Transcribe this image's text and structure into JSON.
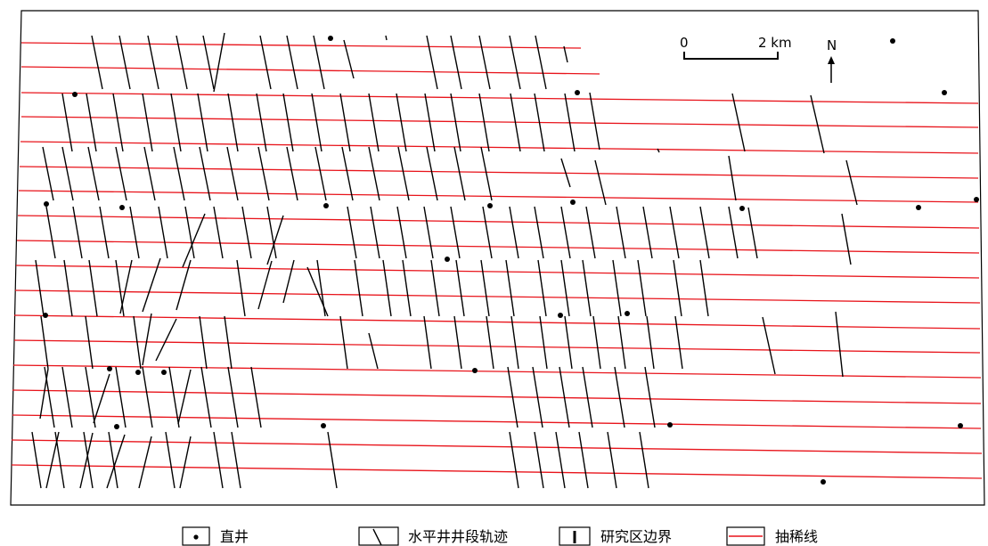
{
  "scale_bar": {
    "start_label": "0",
    "end_label": "2 km"
  },
  "north_arrow": {
    "label": "N"
  },
  "legend": {
    "vertical_well": "直井",
    "horizontal_section": "水平井井段轨迹",
    "study_area_boundary": "研究区边界",
    "decimated_line": "抽稀线"
  },
  "colors": {
    "decimated_line": "#e8141b",
    "well_track": "#000000",
    "boundary": "#000000"
  }
}
